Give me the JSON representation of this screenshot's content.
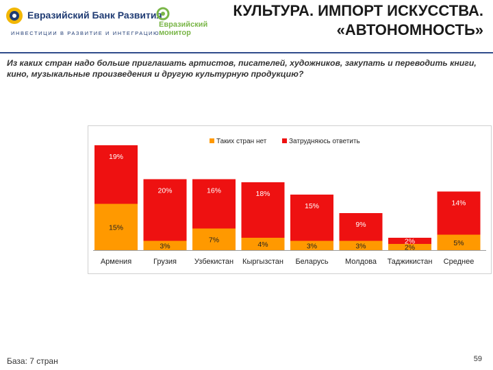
{
  "header": {
    "bank_name": "Евразийский Банк Развития",
    "bank_tagline": "ИНВЕСТИЦИИ В РАЗВИТИЕ И ИНТЕГРАЦИЮ",
    "monitor_line1": "Евразийский",
    "monitor_line2": "монитор",
    "title_line1": "КУЛЬТУРА. ИМПОРТ ИСКУССТВА.",
    "title_line2": "«АВТОНОМНОСТЬ»"
  },
  "question": "Из каких стран надо больше приглашать артистов, писателей, художников, закупать и переводить книги, кино, музыкальные произведения и другую культурную продукцию?",
  "footer": {
    "base": "База: 7 стран",
    "page": "59"
  },
  "colors": {
    "no_countries": "#ff9900",
    "hard_to_say": "#ee1111",
    "brand": "#1f3b73",
    "monitor": "#7ab648"
  },
  "chart_data": {
    "type": "bar",
    "stacked": true,
    "categories": [
      "Армения",
      "Грузия",
      "Узбекистан",
      "Кыргызстан",
      "Беларусь",
      "Молдова",
      "Таджикистан",
      "Среднее"
    ],
    "series": [
      {
        "name": "Таких стран нет",
        "values": [
          15,
          3,
          7,
          4,
          3,
          3,
          2,
          5
        ],
        "labels": [
          "15%",
          "3%",
          "7%",
          "4%",
          "3%",
          "3%",
          "2%",
          "5%"
        ]
      },
      {
        "name": "Затрудняюсь ответить",
        "values": [
          19,
          20,
          16,
          18,
          15,
          9,
          2,
          14
        ],
        "labels": [
          "19%",
          "20%",
          "16%",
          "18%",
          "15%",
          "9%",
          "2%",
          "14%"
        ]
      }
    ],
    "ylim": [
      0,
      36
    ],
    "legend_position": "top-right",
    "grid": false
  }
}
